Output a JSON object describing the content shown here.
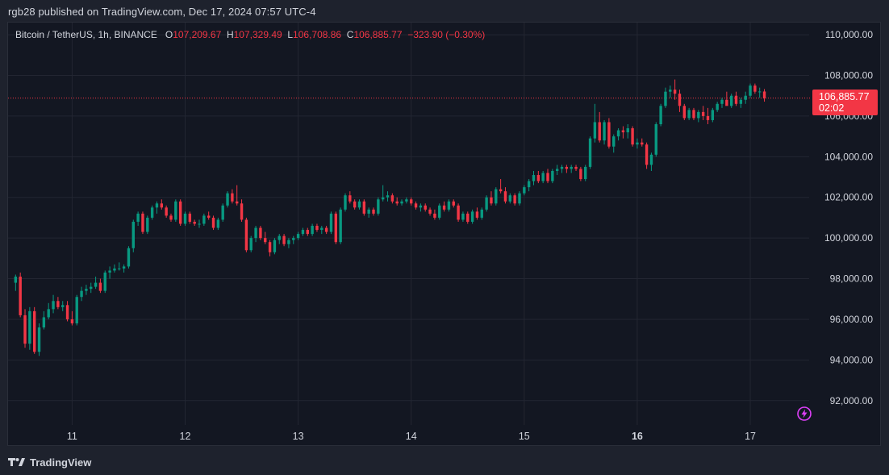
{
  "header": {
    "published_by": "rgb28 published on TradingView.com, Dec 17, 2024 07:57 UTC-4"
  },
  "legend": {
    "symbol": "Bitcoin / TetherUS, 1h, BINANCE",
    "o_label": "O",
    "o_value": "107,209.67",
    "h_label": "H",
    "h_value": "107,329.49",
    "l_label": "L",
    "l_value": "106,708.86",
    "c_label": "C",
    "c_value": "106,885.77",
    "change": "−323.90 (−0.30%)"
  },
  "last_price": {
    "value": "106,885.77",
    "countdown": "02:02"
  },
  "footer": {
    "brand": "TradingView"
  },
  "icons": [
    "tradingview-logo-icon",
    "lightning-bolt-icon"
  ],
  "colors": {
    "up": "#089981",
    "down": "#f23645",
    "background": "#131722",
    "frame": "#1e222d",
    "grid": "#232632",
    "text": "#d1d4dc",
    "accent_icon": "#e040fb"
  },
  "chart_data": {
    "type": "candlestick",
    "title": "Bitcoin / TetherUS, 1h, BINANCE",
    "ylim": [
      90800,
      110600
    ],
    "xlim": [
      -1.6,
      168.5
    ],
    "y_ticks": [
      {
        "value": 110000,
        "label": "110,000.00"
      },
      {
        "value": 108000,
        "label": "108,000.00"
      },
      {
        "value": 106000,
        "label": "106,000.00"
      },
      {
        "value": 104000,
        "label": "104,000.00"
      },
      {
        "value": 102000,
        "label": "102,000.00"
      },
      {
        "value": 100000,
        "label": "100,000.00"
      },
      {
        "value": 98000,
        "label": "98,000.00"
      },
      {
        "value": 96000,
        "label": "96,000.00"
      },
      {
        "value": 94000,
        "label": "94,000.00"
      },
      {
        "value": 92000,
        "label": "92,000.00"
      }
    ],
    "x_ticks": [
      {
        "hour": 12,
        "label": "11",
        "bold": false
      },
      {
        "hour": 36,
        "label": "12",
        "bold": false
      },
      {
        "hour": 60,
        "label": "13",
        "bold": false
      },
      {
        "hour": 84,
        "label": "14",
        "bold": false
      },
      {
        "hour": 108,
        "label": "15",
        "bold": false
      },
      {
        "hour": 132,
        "label": "16",
        "bold": true
      },
      {
        "hour": 156,
        "label": "17",
        "bold": false
      }
    ],
    "last_price": 106885.77,
    "candles": [
      [
        97800,
        98200,
        97400,
        98100
      ],
      [
        98100,
        98300,
        96100,
        96200
      ],
      [
        96200,
        96500,
        94600,
        94800
      ],
      [
        94800,
        96600,
        94500,
        96400
      ],
      [
        96400,
        96600,
        94300,
        94400
      ],
      [
        94400,
        95800,
        94200,
        95600
      ],
      [
        95600,
        96400,
        95500,
        96100
      ],
      [
        96100,
        96800,
        96000,
        96500
      ],
      [
        96500,
        97200,
        96300,
        96900
      ],
      [
        96900,
        97100,
        96500,
        96600
      ],
      [
        96600,
        96900,
        96400,
        96700
      ],
      [
        96700,
        96900,
        95900,
        96000
      ],
      [
        96000,
        96400,
        95700,
        95800
      ],
      [
        95800,
        97200,
        95700,
        97100
      ],
      [
        97100,
        97600,
        96900,
        97400
      ],
      [
        97400,
        97700,
        97200,
        97500
      ],
      [
        97500,
        97800,
        97300,
        97600
      ],
      [
        97600,
        98100,
        97500,
        97800
      ],
      [
        97800,
        98000,
        97300,
        97400
      ],
      [
        97400,
        98400,
        97300,
        98300
      ],
      [
        98300,
        98600,
        98000,
        98400
      ],
      [
        98400,
        98700,
        98300,
        98500
      ],
      [
        98500,
        98800,
        98400,
        98500
      ],
      [
        98500,
        98700,
        98300,
        98600
      ],
      [
        98600,
        99600,
        98500,
        99500
      ],
      [
        99500,
        100900,
        99300,
        100800
      ],
      [
        100800,
        101300,
        100600,
        101200
      ],
      [
        101200,
        101300,
        100200,
        100300
      ],
      [
        100300,
        101100,
        100200,
        101000
      ],
      [
        101000,
        101600,
        100900,
        101500
      ],
      [
        101500,
        101800,
        101200,
        101700
      ],
      [
        101700,
        101900,
        101400,
        101500
      ],
      [
        101500,
        101600,
        101000,
        101100
      ],
      [
        101100,
        101200,
        100800,
        100900
      ],
      [
        100900,
        101900,
        100800,
        101800
      ],
      [
        101800,
        101900,
        100600,
        100700
      ],
      [
        100700,
        101300,
        100600,
        101200
      ],
      [
        101200,
        101300,
        100700,
        100800
      ],
      [
        100800,
        100900,
        100600,
        100700
      ],
      [
        100700,
        100900,
        100500,
        100700
      ],
      [
        100700,
        101200,
        100600,
        101100
      ],
      [
        101100,
        101300,
        100900,
        101000
      ],
      [
        101000,
        101100,
        100400,
        100500
      ],
      [
        100500,
        101000,
        100400,
        100900
      ],
      [
        100900,
        101700,
        100800,
        101600
      ],
      [
        101600,
        102300,
        101500,
        102200
      ],
      [
        102200,
        102400,
        101700,
        101800
      ],
      [
        101800,
        102600,
        101600,
        101700
      ],
      [
        101700,
        101900,
        100800,
        100900
      ],
      [
        100900,
        101000,
        99300,
        99400
      ],
      [
        99400,
        100100,
        99300,
        100000
      ],
      [
        100000,
        100600,
        99800,
        100500
      ],
      [
        100500,
        100600,
        99900,
        100000
      ],
      [
        100000,
        100300,
        99700,
        99800
      ],
      [
        99800,
        99900,
        99100,
        99300
      ],
      [
        99300,
        100000,
        99200,
        99900
      ],
      [
        99900,
        100200,
        99700,
        100100
      ],
      [
        100100,
        100200,
        99600,
        99700
      ],
      [
        99700,
        100000,
        99500,
        99900
      ],
      [
        99900,
        100100,
        99700,
        100000
      ],
      [
        100000,
        100300,
        99900,
        100200
      ],
      [
        100200,
        100500,
        100100,
        100400
      ],
      [
        100400,
        100500,
        100100,
        100200
      ],
      [
        100200,
        100700,
        100100,
        100600
      ],
      [
        100600,
        100700,
        100300,
        100400
      ],
      [
        100400,
        100600,
        100200,
        100500
      ],
      [
        100500,
        100600,
        100200,
        100300
      ],
      [
        100300,
        101300,
        100200,
        101200
      ],
      [
        101200,
        101300,
        99700,
        99800
      ],
      [
        99800,
        101500,
        99700,
        101400
      ],
      [
        101400,
        102200,
        101300,
        102100
      ],
      [
        102100,
        102300,
        101700,
        101800
      ],
      [
        101800,
        101900,
        101400,
        101500
      ],
      [
        101500,
        101900,
        101400,
        101800
      ],
      [
        101800,
        101900,
        101100,
        101200
      ],
      [
        101200,
        101500,
        101000,
        101400
      ],
      [
        101400,
        101500,
        101100,
        101200
      ],
      [
        101200,
        102000,
        101100,
        101900
      ],
      [
        101900,
        102600,
        101800,
        102000
      ],
      [
        102000,
        102300,
        101800,
        102100
      ],
      [
        102100,
        102200,
        101700,
        101800
      ],
      [
        101800,
        102000,
        101600,
        101700
      ],
      [
        101700,
        101900,
        101600,
        101800
      ],
      [
        101800,
        102000,
        101700,
        101900
      ],
      [
        101900,
        102000,
        101600,
        101700
      ],
      [
        101700,
        101800,
        101400,
        101500
      ],
      [
        101500,
        101700,
        101300,
        101600
      ],
      [
        101600,
        101700,
        101300,
        101400
      ],
      [
        101400,
        101500,
        101100,
        101200
      ],
      [
        101200,
        101400,
        100900,
        101000
      ],
      [
        101000,
        101700,
        100900,
        101600
      ],
      [
        101600,
        101800,
        101300,
        101400
      ],
      [
        101400,
        101900,
        101300,
        101800
      ],
      [
        101800,
        101900,
        101500,
        101600
      ],
      [
        101600,
        101700,
        100800,
        100900
      ],
      [
        100900,
        101300,
        100800,
        101200
      ],
      [
        101200,
        101300,
        100700,
        100800
      ],
      [
        100800,
        101400,
        100700,
        101300
      ],
      [
        101300,
        101500,
        100900,
        101000
      ],
      [
        101000,
        101500,
        100900,
        101400
      ],
      [
        101400,
        102100,
        101300,
        102000
      ],
      [
        102000,
        102300,
        101600,
        101700
      ],
      [
        101700,
        102500,
        101600,
        102400
      ],
      [
        102400,
        102900,
        102200,
        102300
      ],
      [
        102300,
        102500,
        101700,
        101800
      ],
      [
        101800,
        102200,
        101700,
        102100
      ],
      [
        102100,
        102200,
        101600,
        101700
      ],
      [
        101700,
        102300,
        101600,
        102200
      ],
      [
        102200,
        102600,
        102100,
        102500
      ],
      [
        102500,
        102900,
        102300,
        102800
      ],
      [
        102800,
        103300,
        102600,
        103100
      ],
      [
        103100,
        103300,
        102700,
        102800
      ],
      [
        102800,
        103300,
        102700,
        103200
      ],
      [
        103200,
        103400,
        102700,
        102800
      ],
      [
        102800,
        103400,
        102700,
        103300
      ],
      [
        103300,
        103600,
        103100,
        103400
      ],
      [
        103400,
        103600,
        103200,
        103500
      ],
      [
        103500,
        103600,
        103200,
        103400
      ],
      [
        103400,
        103600,
        103200,
        103500
      ],
      [
        103500,
        103600,
        103300,
        103400
      ],
      [
        103400,
        103500,
        102800,
        102900
      ],
      [
        102900,
        103600,
        102800,
        103500
      ],
      [
        103500,
        105000,
        103400,
        104900
      ],
      [
        104900,
        106600,
        104700,
        105700
      ],
      [
        105700,
        106200,
        104700,
        104800
      ],
      [
        104800,
        105800,
        104600,
        105700
      ],
      [
        105700,
        105900,
        104400,
        104500
      ],
      [
        104500,
        105100,
        104200,
        105000
      ],
      [
        105000,
        105400,
        104800,
        105300
      ],
      [
        105300,
        105500,
        104900,
        105200
      ],
      [
        105200,
        105600,
        104900,
        105400
      ],
      [
        105400,
        105500,
        104500,
        104600
      ],
      [
        104600,
        104900,
        104400,
        104700
      ],
      [
        104700,
        104900,
        104500,
        104600
      ],
      [
        104600,
        104700,
        103400,
        103600
      ],
      [
        103600,
        104200,
        103300,
        104100
      ],
      [
        104100,
        105700,
        104000,
        105600
      ],
      [
        105600,
        106600,
        105500,
        106500
      ],
      [
        106500,
        107400,
        106400,
        107200
      ],
      [
        107200,
        107500,
        106900,
        107300
      ],
      [
        107300,
        107800,
        106800,
        107100
      ],
      [
        107100,
        107300,
        106200,
        106500
      ],
      [
        106500,
        106600,
        105800,
        105900
      ],
      [
        105900,
        106400,
        105800,
        106300
      ],
      [
        106300,
        106400,
        105800,
        105900
      ],
      [
        105900,
        106300,
        105700,
        106200
      ],
      [
        106200,
        106500,
        105800,
        106000
      ],
      [
        106000,
        106400,
        105600,
        105800
      ],
      [
        105800,
        106400,
        105700,
        106300
      ],
      [
        106300,
        106700,
        106200,
        106600
      ],
      [
        106600,
        106900,
        106400,
        106800
      ],
      [
        106800,
        107200,
        106600,
        106500
      ],
      [
        106500,
        107100,
        106400,
        107000
      ],
      [
        107000,
        107200,
        106500,
        106600
      ],
      [
        106600,
        106900,
        106400,
        106800
      ],
      [
        106800,
        107200,
        106600,
        107000
      ],
      [
        107000,
        107600,
        106900,
        107500
      ],
      [
        107500,
        107600,
        107100,
        107200
      ],
      [
        107200,
        107400,
        106900,
        107210
      ],
      [
        107209.67,
        107329.49,
        106708.86,
        106885.77
      ]
    ]
  }
}
